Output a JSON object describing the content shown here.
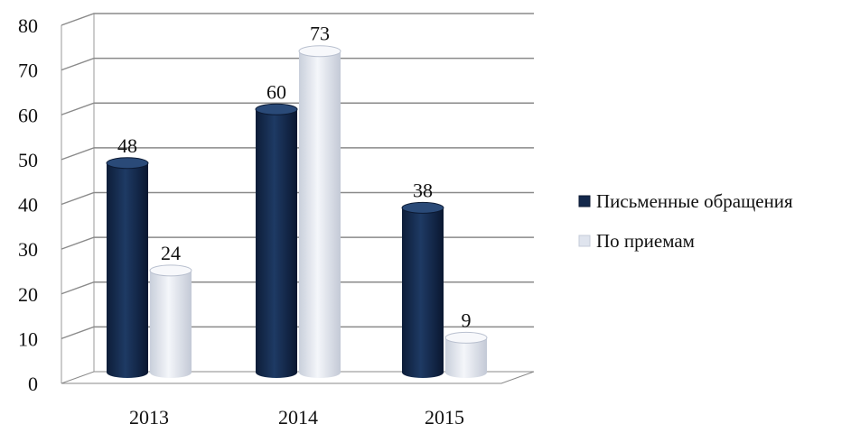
{
  "chart_data": {
    "type": "bar",
    "style": "3d-cylinder",
    "categories": [
      "2013",
      "2014",
      "2015"
    ],
    "series": [
      {
        "name": "Письменные обращения",
        "values": [
          48,
          60,
          38
        ],
        "color": "#13284b"
      },
      {
        "name": "По приемам",
        "values": [
          24,
          73,
          9
        ],
        "color": "#dfe4ee"
      }
    ],
    "ylim": [
      0,
      80
    ],
    "yticks": [
      "0",
      "10",
      "20",
      "30",
      "40",
      "50",
      "60",
      "70",
      "80"
    ],
    "data_labels": true,
    "grid": true,
    "legend": "right"
  }
}
